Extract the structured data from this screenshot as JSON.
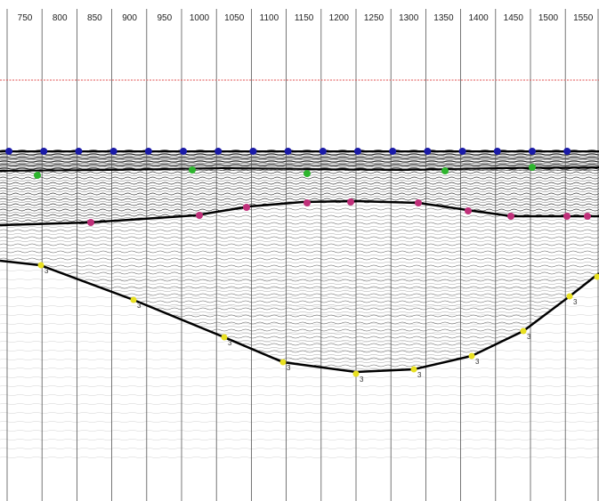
{
  "header": {
    "ticks": [
      "750",
      "800",
      "850",
      "900",
      "950",
      "1000",
      "1050",
      "1100",
      "1150",
      "1200",
      "1250",
      "1300",
      "1350",
      "1400",
      "1450",
      "1500",
      "1550"
    ]
  },
  "colors": {
    "grid_line": "#555555",
    "reference_line": "#e05050",
    "horizon": "#000000",
    "surface_marker": "#1a1aa8",
    "green_marker": "#2db52d",
    "magenta_marker": "#c0307a",
    "yellow_marker": "#e8e020"
  },
  "markers": {
    "base_label": "3"
  }
}
